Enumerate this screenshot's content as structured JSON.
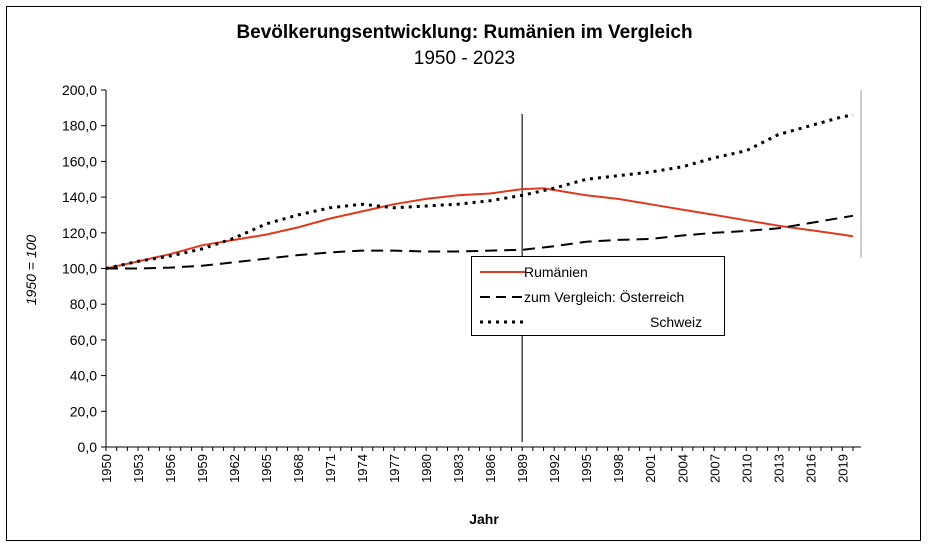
{
  "chart_data": {
    "type": "line",
    "title": "Bevölkerungsentwicklung: Rumänien im Vergleich",
    "subtitle": "1950 - 2023",
    "xlabel": "Jahr",
    "ylabel": "1950 = 100",
    "xlim": [
      1950,
      2020
    ],
    "ylim": [
      0,
      200
    ],
    "y_ticks": [
      "0,0",
      "20,0",
      "40,0",
      "60,0",
      "80,0",
      "100,0",
      "120,0",
      "140,0",
      "160,0",
      "180,0",
      "200,0"
    ],
    "x_ticks": [
      "1950",
      "1953",
      "1956",
      "1959",
      "1962",
      "1965",
      "1968",
      "1971",
      "1974",
      "1977",
      "1980",
      "1983",
      "1986",
      "1989",
      "1992",
      "1995",
      "1998",
      "2001",
      "2004",
      "2007",
      "2010",
      "2013",
      "2016",
      "2019"
    ],
    "vertical_marker_year": 1989,
    "grid": false,
    "legend_position": "center-right",
    "series": [
      {
        "name": "Rumänien",
        "color": "#e03a1e",
        "style": "solid",
        "x": [
          1950,
          1953,
          1956,
          1959,
          1962,
          1965,
          1968,
          1971,
          1974,
          1977,
          1980,
          1983,
          1986,
          1989,
          1991,
          1992,
          1995,
          1998,
          2001,
          2004,
          2007,
          2010,
          2013,
          2016,
          2019,
          2020
        ],
        "values": [
          100,
          104,
          108,
          113,
          116,
          119,
          123,
          128,
          132,
          136,
          139,
          141,
          142,
          144.5,
          145,
          144,
          141,
          139,
          136,
          133,
          130,
          127,
          124,
          121.5,
          119,
          118
        ]
      },
      {
        "name": "zum Vergleich: Österreich",
        "color": "#000000",
        "style": "dashed",
        "x": [
          1950,
          1953,
          1956,
          1959,
          1962,
          1965,
          1968,
          1971,
          1974,
          1977,
          1980,
          1983,
          1986,
          1989,
          1992,
          1995,
          1998,
          2001,
          2004,
          2007,
          2010,
          2013,
          2016,
          2019,
          2020
        ],
        "values": [
          100,
          100,
          100.5,
          101.5,
          103.5,
          105.5,
          107.5,
          109,
          110,
          110,
          109.5,
          109.5,
          110,
          110.5,
          112.5,
          115,
          116,
          116.5,
          118.5,
          120,
          121,
          122.5,
          125.5,
          128.5,
          129.5
        ]
      },
      {
        "name": "Schweiz",
        "color": "#000000",
        "style": "dotted",
        "x": [
          1950,
          1953,
          1956,
          1959,
          1962,
          1965,
          1968,
          1971,
          1974,
          1977,
          1980,
          1983,
          1986,
          1989,
          1992,
          1995,
          1998,
          2001,
          2004,
          2007,
          2010,
          2013,
          2016,
          2019,
          2020
        ],
        "values": [
          100,
          104,
          107,
          111,
          117,
          125,
          130,
          134,
          136,
          134,
          135,
          136,
          138,
          141,
          145,
          150,
          152,
          154,
          157,
          162,
          166,
          175,
          180,
          185,
          186
        ]
      }
    ]
  }
}
